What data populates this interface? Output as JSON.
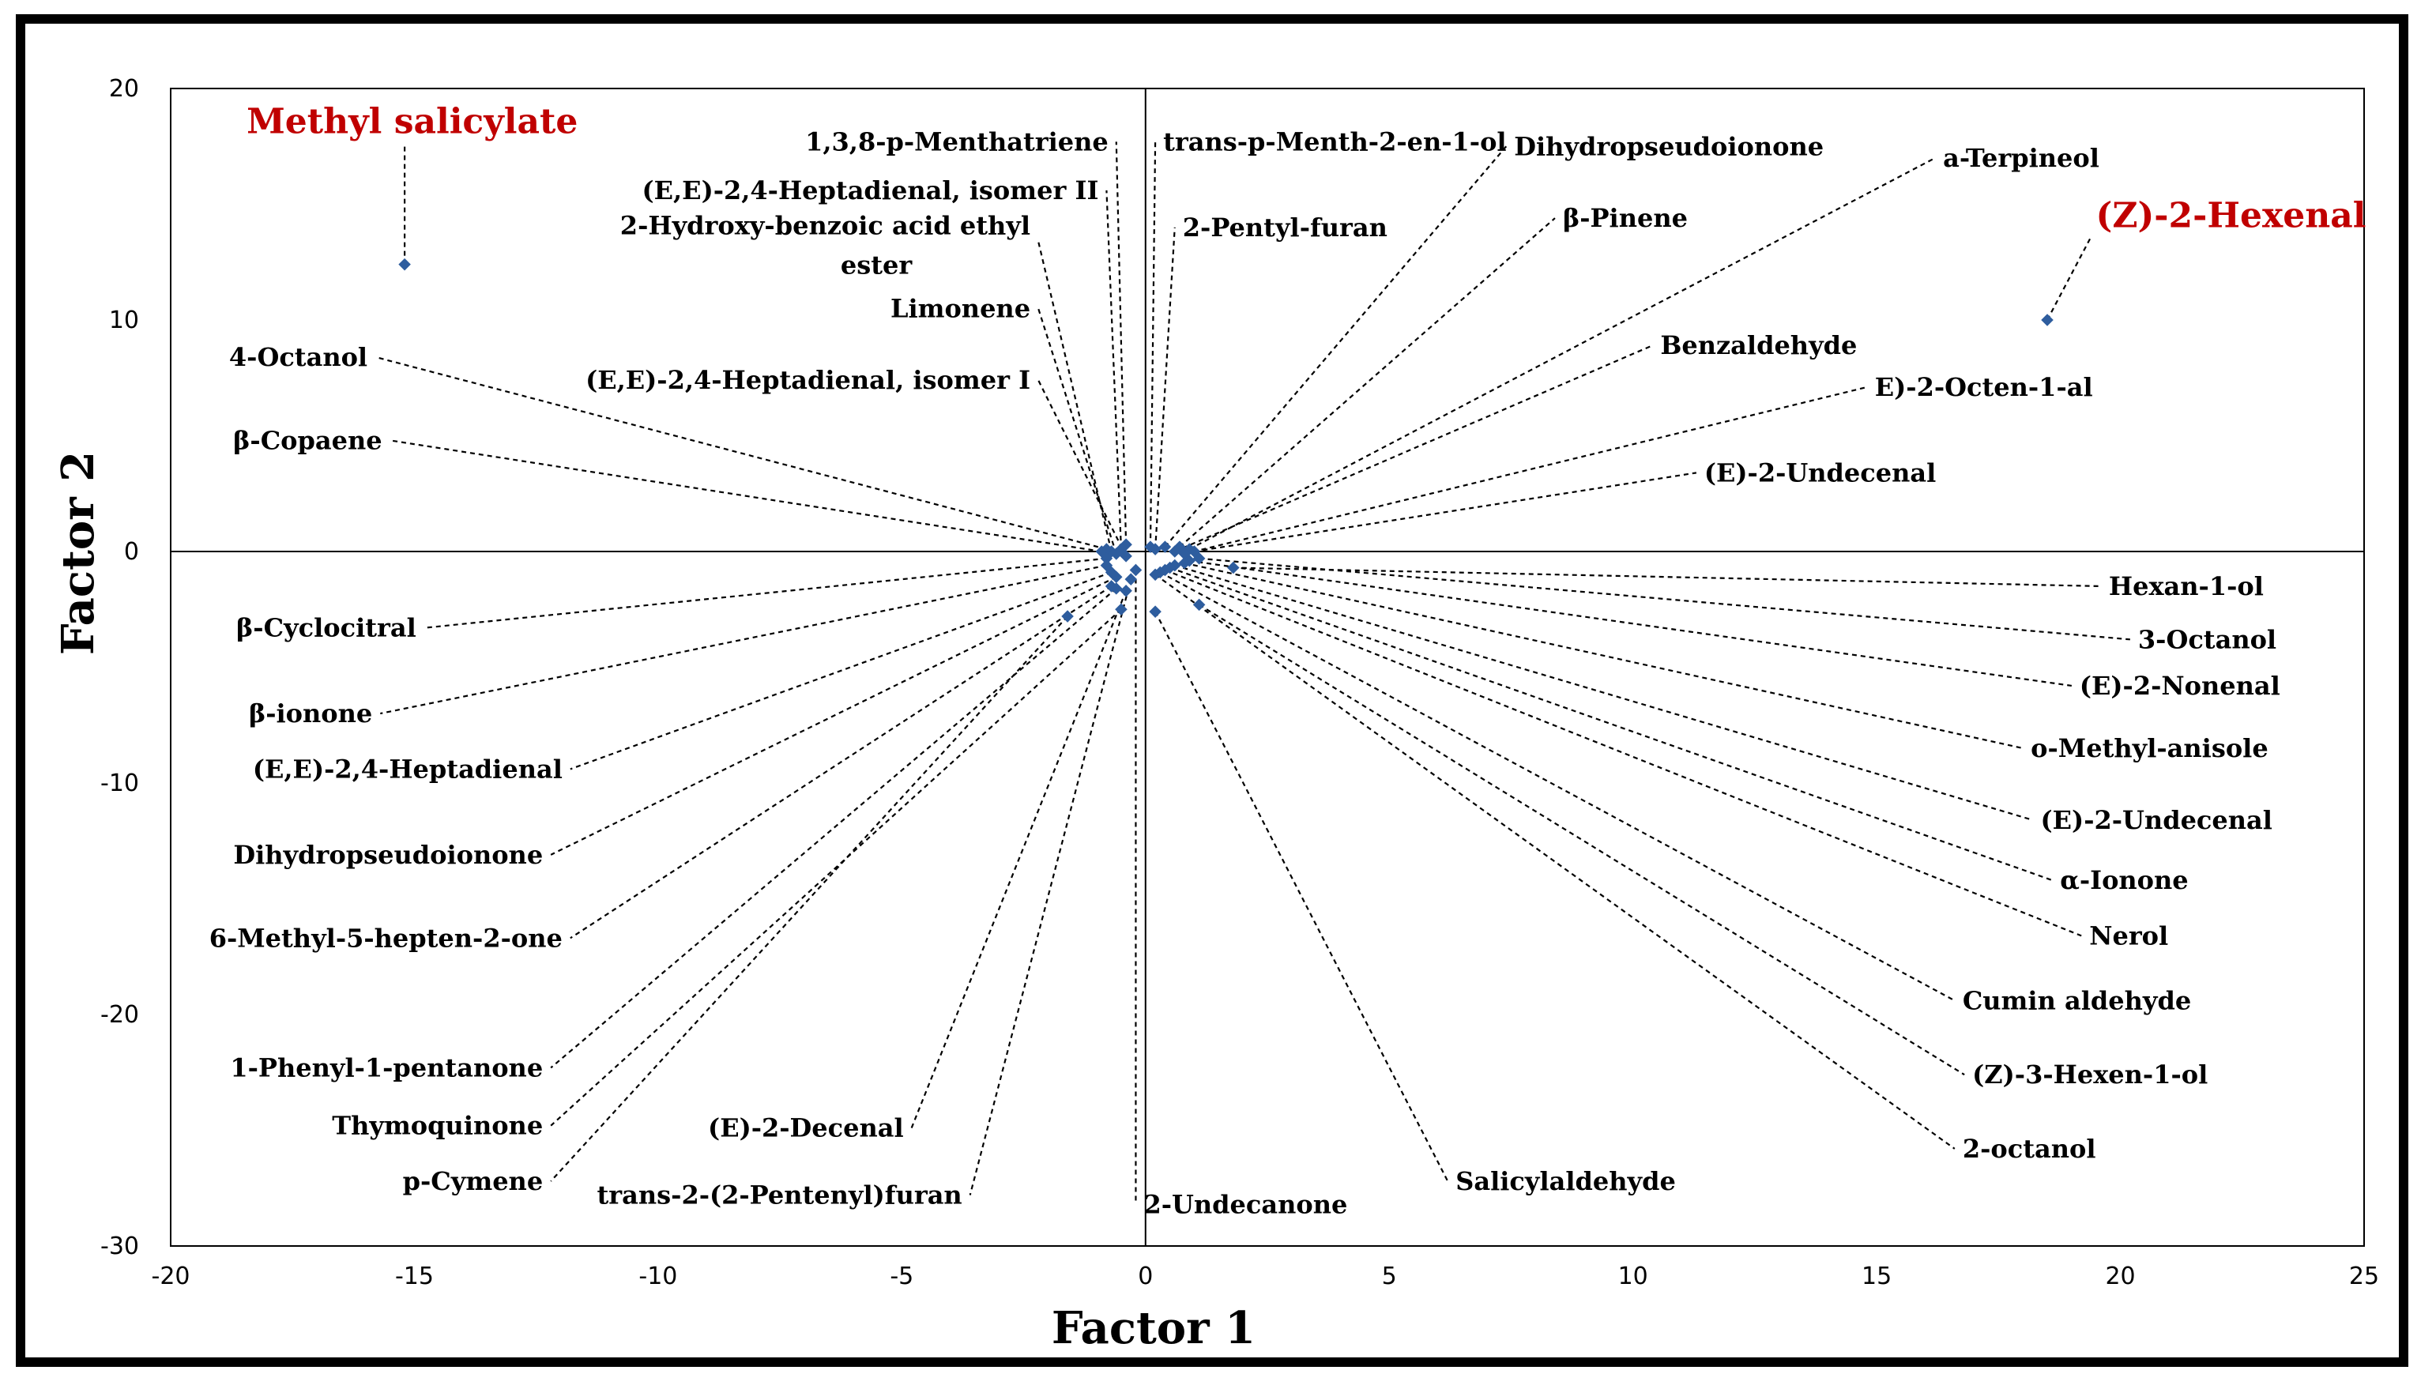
{
  "chart_data": {
    "type": "scatter",
    "xlabel": "Factor 1",
    "ylabel": "Factor 2",
    "xlim": [
      -20,
      25
    ],
    "ylim": [
      -30,
      20
    ],
    "xticks": [
      -20,
      -15,
      -10,
      -5,
      0,
      5,
      10,
      15,
      20,
      25
    ],
    "yticks": [
      20,
      10,
      0,
      -10,
      -20,
      -30
    ],
    "grid": false,
    "highlight_color": "#c00000",
    "point_color": "#2e5d9e",
    "points": [
      {
        "label": "Methyl salicylate",
        "x": -15.2,
        "y": 12.4,
        "lx": -15.2,
        "ly": 17.6,
        "highlight": true
      },
      {
        "label": "(Z)-2-Hexenal",
        "x": 18.5,
        "y": 10.0,
        "lx": 19.4,
        "ly": 13.6,
        "highlight": true
      },
      {
        "label": "1,3,8-p-Menthatriene",
        "x": -0.4,
        "y": 0.3,
        "lx": -0.6,
        "ly": 17.7
      },
      {
        "label": "(E,E)-2,4-Heptadienal, isomer II",
        "x": -0.5,
        "y": 0.1,
        "lx": -0.8,
        "ly": 15.6
      },
      {
        "label": "2-Hydroxy-benzoic acid  ethyl ester",
        "x": -0.7,
        "y": 0.0,
        "lx": -2.2,
        "ly": 13.4
      },
      {
        "label": "Limonene",
        "x": -0.6,
        "y": -0.1,
        "lx": -2.2,
        "ly": 10.5
      },
      {
        "label": "(E,E)-2,4-Heptadienal, isomer I",
        "x": -0.4,
        "y": -0.2,
        "lx": -2.2,
        "ly": 7.4
      },
      {
        "label": "trans-p-Menth-2-en-1-ol",
        "x": 0.1,
        "y": 0.2,
        "lx": 0.2,
        "ly": 17.7
      },
      {
        "label": "Dihydropseudoionone",
        "x": 0.4,
        "y": 0.2,
        "lx": 7.4,
        "ly": 17.5
      },
      {
        "label": "2-Pentyl-furan",
        "x": 0.2,
        "y": 0.1,
        "lx": 0.6,
        "ly": 14.0
      },
      {
        "label": "β-Pinene",
        "x": 0.7,
        "y": 0.2,
        "lx": 8.4,
        "ly": 14.4
      },
      {
        "label": "a-Terpineol",
        "x": 0.9,
        "y": 0.1,
        "lx": 16.2,
        "ly": 17.0
      },
      {
        "label": "Benzaldehyde",
        "x": 0.6,
        "y": 0.0,
        "lx": 10.4,
        "ly": 8.9
      },
      {
        "label": "E)-2-Octen-1-al",
        "x": 0.8,
        "y": -0.1,
        "lx": 14.8,
        "ly": 7.1
      },
      {
        "label": "(E)-2-Undecenal",
        "x": 1.0,
        "y": 0.0,
        "lx": 11.3,
        "ly": 3.4
      },
      {
        "label": "4-Octanol",
        "x": -0.8,
        "y": 0.1,
        "lx": -15.8,
        "ly": 8.4
      },
      {
        "label": "β-Copaene",
        "x": -0.9,
        "y": 0.0,
        "lx": -15.5,
        "ly": 4.8
      },
      {
        "label": "Hexan-1-ol",
        "x": 1.8,
        "y": -0.7,
        "lx": 19.6,
        "ly": -1.5
      },
      {
        "label": "3-Octanol",
        "x": 1.1,
        "y": -0.3,
        "lx": 20.2,
        "ly": -3.8
      },
      {
        "label": "(E)-2-Nonenal",
        "x": 0.9,
        "y": -0.4,
        "lx": 19.0,
        "ly": -5.8
      },
      {
        "label": "o-Methyl-anisole",
        "x": 0.8,
        "y": -0.5,
        "lx": 18.0,
        "ly": -8.5
      },
      {
        "label": "(E)-2-Undecenal",
        "x": 0.6,
        "y": -0.6,
        "lx": 18.2,
        "ly": -11.6
      },
      {
        "label": "α-Ionone",
        "x": 0.5,
        "y": -0.7,
        "lx": 18.6,
        "ly": -14.2
      },
      {
        "label": "Nerol",
        "x": 0.4,
        "y": -0.8,
        "lx": 19.2,
        "ly": -16.6
      },
      {
        "label": "Cumin aldehyde",
        "x": 0.3,
        "y": -0.9,
        "lx": 16.6,
        "ly": -19.4
      },
      {
        "label": "(Z)-3-Hexen-1-ol",
        "x": 1.1,
        "y": -2.3,
        "lx": 16.8,
        "ly": -22.6
      },
      {
        "label": "2-octanol",
        "x": 0.2,
        "y": -1.0,
        "lx": 16.6,
        "ly": -25.8
      },
      {
        "label": "Salicylaldehyde",
        "x": 0.2,
        "y": -2.6,
        "lx": 6.2,
        "ly": -27.2
      },
      {
        "label": "β-Cyclocitral",
        "x": -0.8,
        "y": -0.3,
        "lx": -14.8,
        "ly": -3.3
      },
      {
        "label": "β-ionone",
        "x": -0.8,
        "y": -0.6,
        "lx": -15.7,
        "ly": -7.0
      },
      {
        "label": "(E,E)-2,4-Heptadienal",
        "x": -0.7,
        "y": -0.9,
        "lx": -11.8,
        "ly": -9.4
      },
      {
        "label": "Dihydropseudoionone",
        "x": -0.6,
        "y": -1.1,
        "lx": -12.2,
        "ly": -13.1
      },
      {
        "label": "6-Methyl-5-hepten-2-one",
        "x": -0.7,
        "y": -1.5,
        "lx": -11.8,
        "ly": -16.7
      },
      {
        "label": "1-Phenyl-1-pentanone",
        "x": -0.6,
        "y": -1.6,
        "lx": -12.2,
        "ly": -22.3
      },
      {
        "label": "Thymoquinone",
        "x": -0.5,
        "y": -2.5,
        "lx": -12.2,
        "ly": -24.8
      },
      {
        "label": "p-Cymene",
        "x": -1.6,
        "y": -2.8,
        "lx": -12.2,
        "ly": -27.2
      },
      {
        "label": "(E)-2-Decenal",
        "x": -0.4,
        "y": -1.7,
        "lx": -4.8,
        "ly": -24.9
      },
      {
        "label": "trans-2-(2-Pentenyl)furan",
        "x": -0.3,
        "y": -1.2,
        "lx": -3.6,
        "ly": -27.8
      },
      {
        "label": "2-Undecanone",
        "x": -0.2,
        "y": -0.8,
        "lx": -0.2,
        "ly": -28.2
      }
    ]
  }
}
